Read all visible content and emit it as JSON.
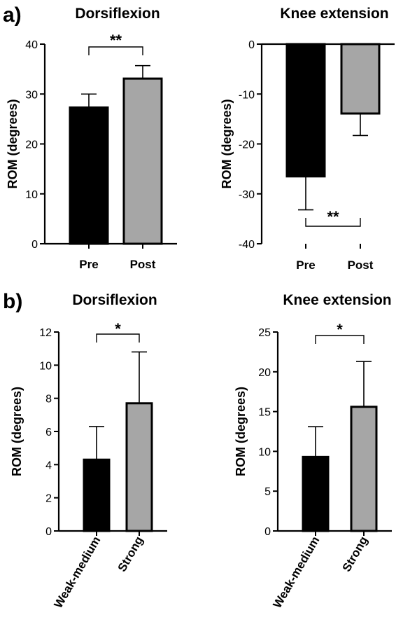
{
  "panels": {
    "a": "a)",
    "b": "b)"
  },
  "chart_data": [
    {
      "type": "bar",
      "title": "Dorsiflexion",
      "ylabel": "ROM (degrees)",
      "categories": [
        "Pre",
        "Post"
      ],
      "values": [
        27.3,
        33.1
      ],
      "errors": [
        2.7,
        2.6
      ],
      "colors": [
        "#000000",
        "#a6a6a6"
      ],
      "ylim": [
        0,
        40
      ],
      "yticks": [
        0,
        10,
        20,
        30,
        40
      ],
      "significance": "**",
      "grid": false
    },
    {
      "type": "bar",
      "title": "Knee extension",
      "ylabel": "ROM (degrees)",
      "categories": [
        "Pre",
        "Post"
      ],
      "values": [
        -26.5,
        -13.9
      ],
      "errors": [
        6.7,
        4.4
      ],
      "colors": [
        "#000000",
        "#a6a6a6"
      ],
      "ylim": [
        -40,
        0
      ],
      "yticks": [
        -40,
        -30,
        -20,
        -10,
        0
      ],
      "significance": "**",
      "grid": false
    },
    {
      "type": "bar",
      "title": "Dorsiflexion",
      "ylabel": "ROM (degrees)",
      "categories": [
        "Weak-medium",
        "Strong"
      ],
      "values": [
        4.3,
        7.7
      ],
      "errors": [
        2.0,
        3.1
      ],
      "colors": [
        "#000000",
        "#a6a6a6"
      ],
      "ylim": [
        0,
        12
      ],
      "yticks": [
        0,
        2,
        4,
        6,
        8,
        10,
        12
      ],
      "significance": "*",
      "grid": false
    },
    {
      "type": "bar",
      "title": "Knee extension",
      "ylabel": "ROM (degrees)",
      "categories": [
        "Weak-medium",
        "Strong"
      ],
      "values": [
        9.3,
        15.6
      ],
      "errors": [
        3.8,
        5.7
      ],
      "colors": [
        "#000000",
        "#a6a6a6"
      ],
      "ylim": [
        0,
        25
      ],
      "yticks": [
        0,
        5,
        10,
        15,
        20,
        25
      ],
      "significance": "*",
      "grid": false
    }
  ]
}
